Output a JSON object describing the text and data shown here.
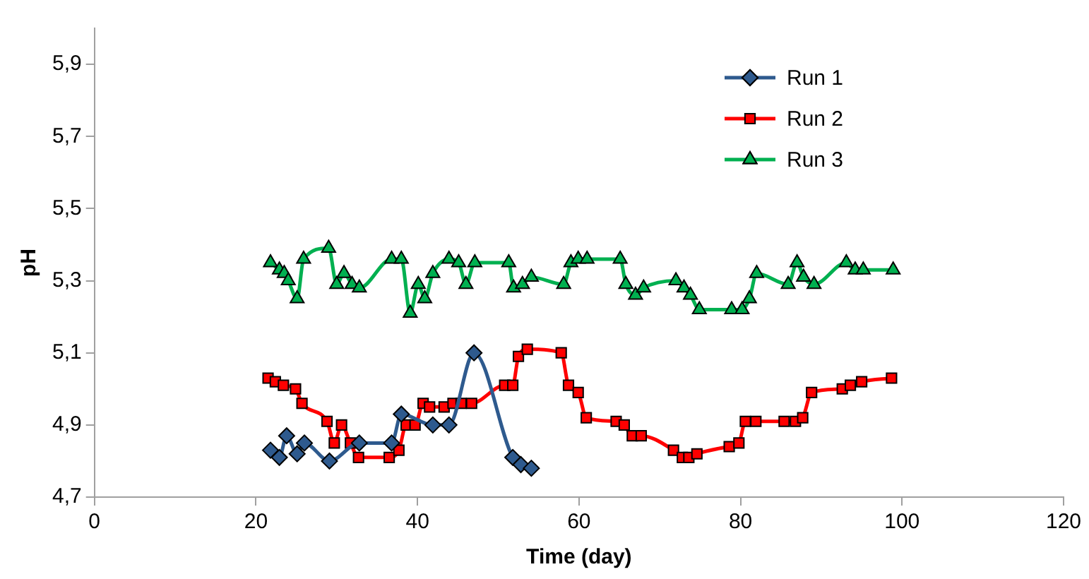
{
  "chart_data": {
    "type": "line",
    "xlabel": "Time (day)",
    "ylabel": "pH",
    "xlim": [
      0,
      120
    ],
    "xticks": [
      0,
      20,
      40,
      60,
      80,
      100,
      120
    ],
    "ylim": [
      4.7,
      6.0
    ],
    "yticks": [
      {
        "value": 4.7,
        "label": "4,7"
      },
      {
        "value": 4.9,
        "label": "4,9"
      },
      {
        "value": 5.1,
        "label": "5,1"
      },
      {
        "value": 5.3,
        "label": "5,3"
      },
      {
        "value": 5.5,
        "label": "5,5"
      },
      {
        "value": 5.7,
        "label": "5,7"
      },
      {
        "value": 5.9,
        "label": "5,9"
      }
    ],
    "grid": false,
    "legend": "top right",
    "series": [
      {
        "name": "Run 1",
        "color": "#2e5a8e",
        "marker": "diamond",
        "x": [
          21.8,
          22.9,
          23.8,
          25.1,
          26.0,
          29.1,
          32.8,
          36.8,
          38.0,
          41.9,
          43.9,
          47.0,
          51.8,
          52.8,
          54.1
        ],
        "values": [
          4.83,
          4.81,
          4.87,
          4.82,
          4.85,
          4.8,
          4.85,
          4.85,
          4.93,
          4.9,
          4.9,
          5.1,
          4.81,
          4.79,
          4.78
        ]
      },
      {
        "name": "Run 2",
        "color": "#ff0000",
        "marker": "square",
        "x": [
          21.5,
          22.4,
          23.4,
          24.9,
          25.7,
          28.8,
          29.7,
          30.6,
          31.7,
          32.7,
          36.5,
          37.7,
          38.6,
          39.7,
          40.7,
          41.5,
          43.3,
          44.4,
          45.4,
          46.7,
          50.8,
          51.8,
          52.5,
          53.6,
          57.8,
          58.7,
          59.9,
          60.9,
          64.6,
          65.6,
          66.6,
          67.7,
          71.7,
          72.8,
          73.6,
          74.6,
          78.6,
          79.8,
          80.6,
          81.9,
          85.4,
          86.8,
          87.7,
          88.8,
          92.6,
          93.6,
          95.0,
          98.7
        ],
        "values": [
          5.03,
          5.02,
          5.01,
          5.0,
          4.96,
          4.91,
          4.85,
          4.9,
          4.85,
          4.81,
          4.81,
          4.83,
          4.9,
          4.9,
          4.96,
          4.95,
          4.95,
          4.96,
          4.96,
          4.96,
          5.01,
          5.01,
          5.09,
          5.11,
          5.1,
          5.01,
          4.99,
          4.92,
          4.91,
          4.9,
          4.87,
          4.87,
          4.83,
          4.81,
          4.81,
          4.82,
          4.84,
          4.85,
          4.91,
          4.91,
          4.91,
          4.91,
          4.92,
          4.99,
          5.0,
          5.01,
          5.02,
          5.03
        ]
      },
      {
        "name": "Run 3",
        "color": "#00b050",
        "marker": "triangle",
        "x": [
          21.8,
          22.9,
          23.5,
          24.0,
          25.1,
          25.9,
          29.0,
          30.0,
          30.9,
          31.9,
          32.8,
          36.8,
          38.0,
          39.1,
          40.1,
          40.9,
          41.9,
          43.9,
          45.1,
          46.0,
          47.1,
          51.3,
          51.9,
          53.0,
          54.1,
          58.1,
          59.0,
          59.9,
          61.0,
          65.1,
          65.8,
          67.0,
          68.0,
          72.0,
          73.0,
          73.8,
          74.9,
          78.9,
          80.2,
          81.1,
          82.0,
          85.9,
          87.0,
          87.8,
          89.1,
          93.1,
          94.2,
          95.2,
          98.9
        ],
        "values": [
          5.35,
          5.33,
          5.32,
          5.3,
          5.25,
          5.36,
          5.39,
          5.29,
          5.32,
          5.29,
          5.28,
          5.36,
          5.36,
          5.21,
          5.29,
          5.25,
          5.32,
          5.36,
          5.35,
          5.29,
          5.35,
          5.35,
          5.28,
          5.29,
          5.31,
          5.29,
          5.35,
          5.36,
          5.36,
          5.36,
          5.29,
          5.26,
          5.28,
          5.3,
          5.28,
          5.26,
          5.22,
          5.22,
          5.22,
          5.25,
          5.32,
          5.29,
          5.35,
          5.31,
          5.29,
          5.35,
          5.33,
          5.33,
          5.33
        ]
      }
    ]
  }
}
